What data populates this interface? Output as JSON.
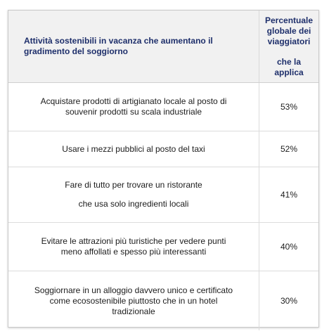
{
  "header": {
    "activity": "Attività sostenibili in vacanza che aumentano il gradimento del soggiorno",
    "percent_lines": [
      "Percentuale",
      "globale dei",
      "viaggiatori"
    ],
    "percent_last": "che la applica"
  },
  "rows": [
    {
      "lines": [
        "Acquistare prodotti di artigianato locale al posto di",
        "souvenir prodotti su scala industriale"
      ],
      "percent": "53%"
    },
    {
      "lines": [
        "Usare i mezzi pubblici al posto del taxi"
      ],
      "percent": "52%"
    },
    {
      "para1": "Fare di tutto per trovare un ristorante",
      "para2": "che usa solo ingredienti locali",
      "percent": "41%"
    },
    {
      "lines": [
        "Evitare le attrazioni più turistiche per vedere punti",
        "meno affollati e spesso più interessanti"
      ],
      "percent": "40%"
    },
    {
      "lines": [
        "Soggiornare in un alloggio davvero unico e certificato",
        "come ecosostenibile piuttosto che in un hotel",
        "tradizionale"
      ],
      "percent": "30%"
    }
  ]
}
